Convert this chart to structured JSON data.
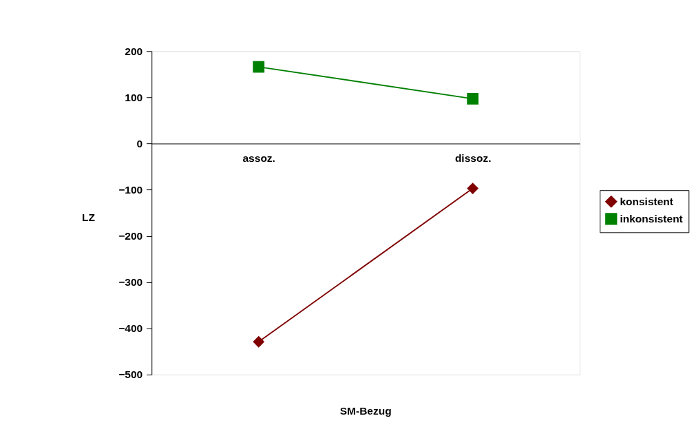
{
  "chart_data": {
    "type": "line",
    "xlabel": "SM-Bezug",
    "ylabel": "LZ",
    "categories": [
      "assoz.",
      "dissoz."
    ],
    "series": [
      {
        "name": "konsistent",
        "color": "#800000",
        "marker": "diamond",
        "values": [
          -429,
          -97
        ]
      },
      {
        "name": "inkonsistent",
        "color": "#008000",
        "marker": "square",
        "values": [
          166,
          97
        ]
      }
    ],
    "ylim": [
      -500,
      200
    ],
    "yticks": [
      -500,
      -400,
      -300,
      -200,
      -100,
      0,
      100,
      200
    ],
    "grid": false,
    "legend": "right"
  }
}
